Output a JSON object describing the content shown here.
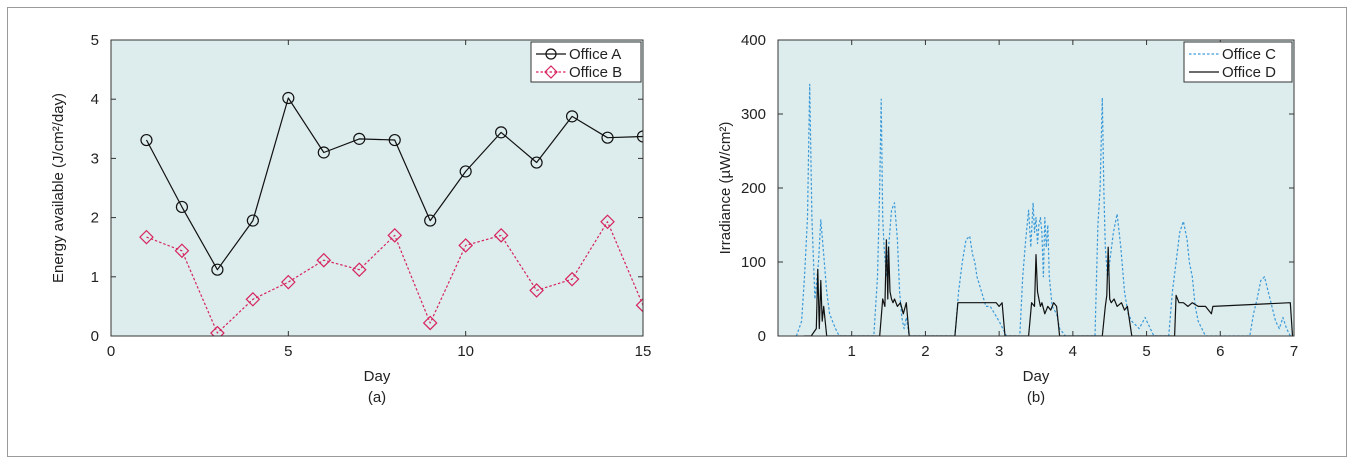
{
  "chart_data": [
    {
      "type": "line",
      "panel_label": "(a)",
      "xlabel": "Day",
      "ylabel": "Energy available (J/cm²/day)",
      "xlim": [
        0,
        15
      ],
      "ylim": [
        0,
        5
      ],
      "xticks": [
        0,
        5,
        10,
        15
      ],
      "yticks": [
        0,
        1,
        2,
        3,
        4,
        5
      ],
      "grid": false,
      "legend_position": "top-right",
      "background": "#ddecec",
      "series": [
        {
          "name": "Office A",
          "color": "#111111",
          "line_style": "solid",
          "marker": "circle",
          "x": [
            1,
            2,
            3,
            4,
            5,
            6,
            7,
            8,
            9,
            10,
            11,
            12,
            13,
            14,
            15
          ],
          "y": [
            3.31,
            2.18,
            1.12,
            1.95,
            4.02,
            3.1,
            3.33,
            3.31,
            1.95,
            2.78,
            3.44,
            2.93,
            3.71,
            3.35,
            3.37
          ]
        },
        {
          "name": "Office B",
          "color": "#d6245e",
          "line_style": "dotted",
          "marker": "diamond",
          "x": [
            1,
            2,
            3,
            4,
            5,
            6,
            7,
            8,
            9,
            10,
            11,
            12,
            13,
            14,
            15
          ],
          "y": [
            1.67,
            1.44,
            0.05,
            0.62,
            0.91,
            1.28,
            1.12,
            1.7,
            0.22,
            1.53,
            1.7,
            0.77,
            0.96,
            1.93,
            0.52
          ]
        }
      ]
    },
    {
      "type": "line",
      "panel_label": "(b)",
      "xlabel": "Day",
      "ylabel": "Irradiance (µW/cm²)",
      "xlim": [
        0,
        7
      ],
      "ylim": [
        0,
        400
      ],
      "xticks": [
        1,
        2,
        3,
        4,
        5,
        6,
        7
      ],
      "yticks": [
        0,
        100,
        200,
        300,
        400
      ],
      "grid": false,
      "legend_position": "top-right",
      "background": "#ddecec",
      "series": [
        {
          "name": "Office C",
          "color": "#3a9ad9",
          "line_style": "dotted",
          "x": [
            0.25,
            0.32,
            0.36,
            0.4,
            0.43,
            0.46,
            0.5,
            0.55,
            0.58,
            0.62,
            0.66,
            0.7,
            0.74,
            0.78,
            0.83,
            0.9,
            1.3,
            1.35,
            1.38,
            1.4,
            1.42,
            1.44,
            1.47,
            1.5,
            1.54,
            1.58,
            1.62,
            1.65,
            1.68,
            1.71,
            1.74,
            1.78,
            1.82,
            1.86,
            2.4,
            2.45,
            2.5,
            2.55,
            2.6,
            2.64,
            2.67,
            2.7,
            2.76,
            2.82,
            2.88,
            2.94,
            3.0,
            3.1,
            3.28,
            3.32,
            3.36,
            3.4,
            3.43,
            3.46,
            3.48,
            3.5,
            3.52,
            3.54,
            3.56,
            3.58,
            3.6,
            3.62,
            3.64,
            3.66,
            3.68,
            3.72,
            3.78,
            3.82,
            3.9,
            4.3,
            4.34,
            4.37,
            4.4,
            4.42,
            4.44,
            4.47,
            4.5,
            4.55,
            4.6,
            4.65,
            4.7,
            4.75,
            4.8,
            4.9,
            4.98,
            5.05,
            5.1,
            5.3,
            5.35,
            5.4,
            5.45,
            5.5,
            5.55,
            5.58,
            5.62,
            5.66,
            5.7,
            5.8,
            5.9,
            6.4,
            6.45,
            6.5,
            6.55,
            6.6,
            6.65,
            6.7,
            6.75,
            6.8,
            6.85,
            6.9,
            6.95
          ],
          "y": [
            0,
            20,
            80,
            160,
            340,
            160,
            50,
            100,
            157,
            110,
            60,
            30,
            20,
            10,
            0,
            0,
            0,
            80,
            200,
            320,
            160,
            120,
            80,
            120,
            170,
            180,
            130,
            60,
            25,
            10,
            25,
            0,
            0,
            0,
            0,
            60,
            100,
            130,
            135,
            110,
            100,
            80,
            60,
            40,
            40,
            30,
            20,
            0,
            0,
            80,
            130,
            170,
            120,
            180,
            140,
            160,
            125,
            150,
            160,
            140,
            80,
            160,
            120,
            150,
            80,
            40,
            30,
            10,
            0,
            0,
            150,
            200,
            322,
            200,
            120,
            80,
            100,
            140,
            165,
            120,
            60,
            30,
            20,
            10,
            25,
            10,
            0,
            0,
            60,
            100,
            140,
            155,
            130,
            100,
            80,
            40,
            20,
            0,
            0,
            0,
            30,
            50,
            75,
            80,
            60,
            40,
            20,
            10,
            25,
            10,
            0
          ]
        },
        {
          "name": "Office D",
          "color": "#111111",
          "line_style": "solid",
          "x": [
            0.35,
            0.45,
            0.52,
            0.54,
            0.56,
            0.58,
            0.6,
            0.62,
            0.66,
            0.72,
            1.32,
            1.38,
            1.42,
            1.45,
            1.47,
            1.49,
            1.5,
            1.52,
            1.54,
            1.56,
            1.58,
            1.62,
            1.66,
            1.7,
            1.74,
            1.78,
            2.4,
            2.44,
            2.5,
            2.6,
            2.7,
            2.8,
            2.9,
            2.96,
            3.0,
            3.04,
            3.08,
            3.4,
            3.44,
            3.48,
            3.5,
            3.52,
            3.54,
            3.56,
            3.58,
            3.62,
            3.66,
            3.7,
            3.74,
            3.78,
            3.82,
            4.4,
            4.44,
            4.46,
            4.48,
            4.5,
            4.52,
            4.56,
            4.6,
            4.66,
            4.7,
            4.74,
            4.8,
            5.38,
            5.4,
            5.44,
            5.5,
            5.56,
            5.62,
            5.7,
            5.8,
            5.88,
            5.9,
            6.95,
            6.98
          ],
          "y": [
            0,
            0,
            10,
            90,
            10,
            75,
            20,
            40,
            0,
            0,
            0,
            0,
            50,
            40,
            130,
            50,
            120,
            60,
            50,
            45,
            50,
            40,
            45,
            30,
            45,
            0,
            0,
            45,
            45,
            45,
            45,
            45,
            45,
            45,
            40,
            45,
            0,
            0,
            45,
            40,
            110,
            60,
            50,
            40,
            45,
            30,
            40,
            35,
            45,
            40,
            0,
            0,
            40,
            55,
            120,
            50,
            45,
            50,
            40,
            45,
            35,
            40,
            0,
            0,
            55,
            45,
            45,
            40,
            45,
            40,
            40,
            30,
            40,
            45,
            0
          ]
        }
      ]
    }
  ]
}
